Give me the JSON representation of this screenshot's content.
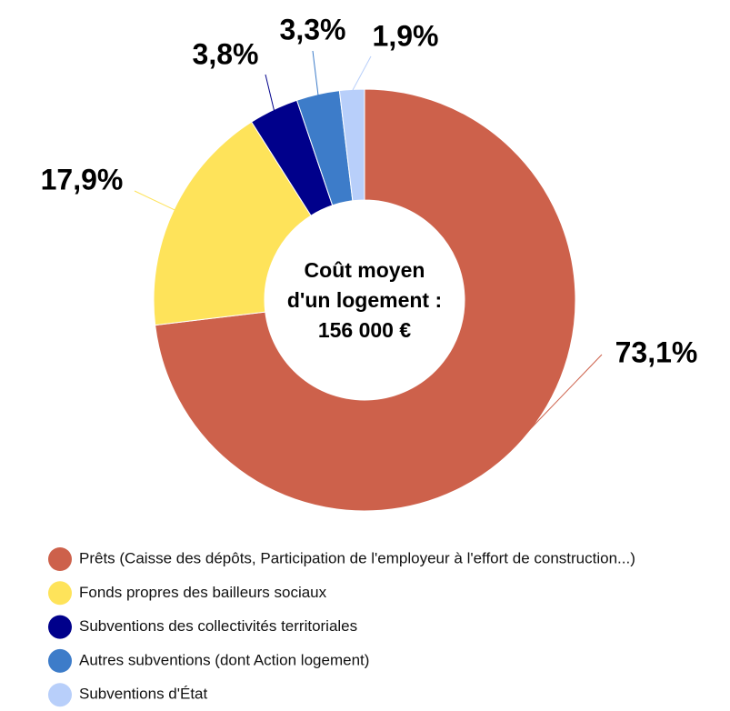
{
  "chart_data": {
    "type": "donut",
    "center_text": [
      "Coût moyen",
      "d'un logement :",
      "156 000 €"
    ],
    "categories": [
      "Prêts (Caisse des dépôts, Participation de l'employeur à l'effort de construction...)",
      "Fonds propres des bailleurs sociaux",
      "Subventions des collectivités territoriales",
      "Autres subventions (dont Action logement)",
      "Subventions d'État"
    ],
    "values": [
      73.1,
      17.9,
      3.8,
      3.3,
      1.9
    ],
    "value_labels": [
      "73,1%",
      "17,9%",
      "3,8%",
      "3,3%",
      "1,9%"
    ],
    "colors": [
      "#cd614b",
      "#fee35a",
      "#00008b",
      "#3d7cc9",
      "#b8cffa"
    ]
  }
}
